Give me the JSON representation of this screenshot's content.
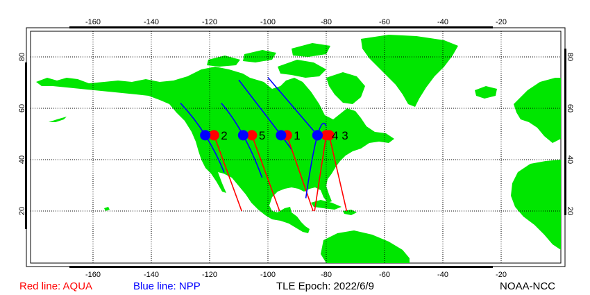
{
  "map": {
    "lon_ticks": [
      "-160",
      "-140",
      "-120",
      "-100",
      "-80",
      "-60",
      "-40",
      "-20"
    ],
    "lat_ticks": [
      "80",
      "60",
      "40",
      "20"
    ],
    "colors": {
      "land": "#00e600",
      "ocean": "#ffffff",
      "grid": "#000000"
    }
  },
  "satellites": {
    "aqua": {
      "name": "AQUA",
      "color": "#ff0000"
    },
    "npp": {
      "name": "NPP",
      "color": "#0000ff"
    }
  },
  "passes": [
    {
      "label": "2",
      "aqua_track": [
        [
          -118.5,
          49.5
        ],
        [
          -109,
          20
        ]
      ],
      "npp_track": [
        [
          -130,
          62
        ],
        [
          -121.5,
          49.5
        ],
        [
          -115,
          35
        ]
      ]
    },
    {
      "label": "5",
      "aqua_track": [
        [
          -105.5,
          49.5
        ],
        [
          -96,
          20
        ]
      ],
      "npp_track": [
        [
          -116,
          62
        ],
        [
          -108.5,
          49.5
        ],
        [
          -102,
          33
        ]
      ]
    },
    {
      "label": "1",
      "aqua_track": [
        [
          -93.5,
          49.5
        ],
        [
          -84.5,
          20
        ]
      ],
      "npp_track": [
        [
          -110,
          71
        ],
        [
          -95.5,
          49.5
        ],
        [
          -92,
          44
        ]
      ]
    },
    {
      "label": "4",
      "aqua_track": [
        [
          -80,
          49.5
        ],
        [
          -84,
          20
        ]
      ],
      "npp_track": [
        [
          -80,
          53
        ],
        [
          -83,
          49.5
        ],
        [
          -87,
          25
        ]
      ]
    },
    {
      "label": "3",
      "aqua_track": [
        [
          -79,
          49.5
        ],
        [
          -73,
          20
        ]
      ],
      "npp_track": [
        [
          -100,
          72
        ],
        [
          -83,
          49.5
        ]
      ]
    }
  ],
  "legend": {
    "aqua_text": "Red line: AQUA",
    "npp_text": "Blue line: NPP",
    "epoch_text": "TLE Epoch: 2022/6/9",
    "credit_text": "NOAA-NCC"
  }
}
